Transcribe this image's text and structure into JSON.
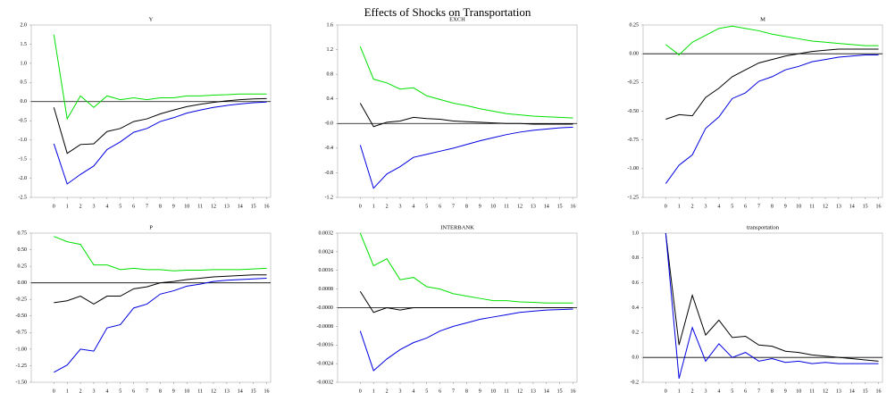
{
  "title": "Effects of Shocks on Transportation",
  "chart_data": [
    {
      "type": "line",
      "title": "Y",
      "x": [
        0,
        1,
        2,
        3,
        4,
        5,
        6,
        7,
        8,
        9,
        10,
        11,
        12,
        13,
        14,
        15,
        16
      ],
      "xlim": [
        -1.7,
        16.3
      ],
      "xticks": [
        0,
        1,
        2,
        3,
        4,
        5,
        6,
        7,
        8,
        9,
        10,
        11,
        12,
        13,
        14,
        15,
        16
      ],
      "ylim": [
        -2.5,
        2.0
      ],
      "yticks": [
        {
          "value": 2.0,
          "label": "2.0"
        },
        1.5,
        {
          "value": 1.0,
          "label": "1.0"
        },
        0.5,
        {
          "value": 0.0,
          "label": "0.0"
        },
        -0.5,
        {
          "value": -1.0,
          "label": "-1.0"
        },
        -1.5,
        {
          "value": -2.0,
          "label": "-2.0"
        },
        -2.5
      ],
      "series": [
        {
          "color": "#00e000",
          "values": [
            1.75,
            -0.45,
            0.15,
            -0.15,
            0.15,
            0.05,
            0.1,
            0.05,
            0.1,
            0.1,
            0.15,
            0.15,
            0.17,
            0.18,
            0.2,
            0.2,
            0.2
          ]
        },
        {
          "color": "#000000",
          "values": [
            -0.15,
            -1.35,
            -1.12,
            -1.1,
            -0.78,
            -0.7,
            -0.52,
            -0.45,
            -0.32,
            -0.22,
            -0.13,
            -0.07,
            -0.02,
            0.02,
            0.05,
            0.07,
            0.08
          ]
        },
        {
          "color": "#0000e0",
          "values": [
            -1.1,
            -2.15,
            -1.9,
            -1.68,
            -1.25,
            -1.05,
            -0.8,
            -0.7,
            -0.52,
            -0.42,
            -0.3,
            -0.22,
            -0.15,
            -0.1,
            -0.06,
            -0.03,
            -0.01
          ]
        }
      ]
    },
    {
      "type": "line",
      "title": "EXCH",
      "x": [
        0,
        1,
        2,
        3,
        4,
        5,
        6,
        7,
        8,
        9,
        10,
        11,
        12,
        13,
        14,
        15,
        16
      ],
      "xlim": [
        -1.7,
        16.3
      ],
      "xticks": [
        0,
        1,
        2,
        3,
        4,
        5,
        6,
        7,
        8,
        9,
        10,
        11,
        12,
        13,
        14,
        15,
        16
      ],
      "ylim": [
        -1.2,
        1.6
      ],
      "yticks": [
        1.6,
        1.2,
        0.8,
        0.4,
        {
          "value": 0,
          "label": "-0.0"
        },
        -0.4,
        -0.8,
        -1.2
      ],
      "series": [
        {
          "color": "#00e000",
          "values": [
            1.25,
            0.72,
            0.66,
            0.56,
            0.58,
            0.45,
            0.39,
            0.33,
            0.29,
            0.24,
            0.2,
            0.16,
            0.14,
            0.12,
            0.11,
            0.1,
            0.09
          ]
        },
        {
          "color": "#000000",
          "values": [
            0.33,
            -0.05,
            0.02,
            0.04,
            0.1,
            0.08,
            0.07,
            0.04,
            0.03,
            0.02,
            0.01,
            0.0,
            0.0,
            -0.01,
            -0.01,
            -0.01,
            -0.01
          ]
        },
        {
          "color": "#0000e0",
          "values": [
            -0.35,
            -1.05,
            -0.82,
            -0.7,
            -0.55,
            -0.5,
            -0.45,
            -0.4,
            -0.34,
            -0.28,
            -0.23,
            -0.18,
            -0.14,
            -0.11,
            -0.09,
            -0.07,
            -0.06
          ]
        }
      ]
    },
    {
      "type": "line",
      "title": "M",
      "x": [
        0,
        1,
        2,
        3,
        4,
        5,
        6,
        7,
        8,
        9,
        10,
        11,
        12,
        13,
        14,
        15,
        16
      ],
      "xlim": [
        -1.7,
        16.3
      ],
      "xticks": [
        0,
        1,
        2,
        3,
        4,
        5,
        6,
        7,
        8,
        9,
        10,
        11,
        12,
        13,
        14,
        15,
        16
      ],
      "ylim": [
        -1.25,
        0.25
      ],
      "yticks": [
        0.25,
        {
          "value": 0,
          "label": "0.00"
        },
        -0.25,
        {
          "value": -0.5,
          "label": "-0.50"
        },
        -0.75,
        {
          "value": -1.0,
          "label": "-1.00"
        },
        -1.25
      ],
      "series": [
        {
          "color": "#00e000",
          "values": [
            0.08,
            -0.01,
            0.1,
            0.16,
            0.22,
            0.24,
            0.22,
            0.2,
            0.17,
            0.15,
            0.13,
            0.11,
            0.1,
            0.09,
            0.08,
            0.07,
            0.07
          ]
        },
        {
          "color": "#000000",
          "values": [
            -0.57,
            -0.53,
            -0.54,
            -0.38,
            -0.3,
            -0.2,
            -0.14,
            -0.08,
            -0.05,
            -0.02,
            0.0,
            0.02,
            0.03,
            0.04,
            0.04,
            0.04,
            0.04
          ]
        },
        {
          "color": "#0000e0",
          "values": [
            -1.13,
            -0.97,
            -0.88,
            -0.65,
            -0.55,
            -0.39,
            -0.34,
            -0.24,
            -0.2,
            -0.14,
            -0.11,
            -0.07,
            -0.05,
            -0.03,
            -0.02,
            -0.01,
            -0.01
          ]
        }
      ]
    },
    {
      "type": "line",
      "title": "P",
      "x": [
        0,
        1,
        2,
        3,
        4,
        5,
        6,
        7,
        8,
        9,
        10,
        11,
        12,
        13,
        14,
        15,
        16
      ],
      "xlim": [
        -1.7,
        16.3
      ],
      "xticks": [
        0,
        1,
        2,
        3,
        4,
        5,
        6,
        7,
        8,
        9,
        10,
        11,
        12,
        13,
        14,
        15,
        16
      ],
      "ylim": [
        -1.5,
        0.75
      ],
      "yticks": [
        0.75,
        {
          "value": 0.5,
          "label": "0.50"
        },
        0.25,
        {
          "value": 0,
          "label": "0.00"
        },
        -0.25,
        {
          "value": -0.5,
          "label": "-0.50"
        },
        -0.75,
        {
          "value": -1.0,
          "label": "-1.00"
        },
        -1.25,
        {
          "value": -1.5,
          "label": "-1.50"
        }
      ],
      "series": [
        {
          "color": "#00e000",
          "values": [
            0.7,
            0.62,
            0.58,
            0.27,
            0.27,
            0.2,
            0.22,
            0.2,
            0.2,
            0.18,
            0.19,
            0.19,
            0.2,
            0.2,
            0.2,
            0.21,
            0.22
          ]
        },
        {
          "color": "#000000",
          "values": [
            -0.3,
            -0.27,
            -0.2,
            -0.32,
            -0.2,
            -0.2,
            -0.09,
            -0.06,
            0.0,
            0.02,
            0.05,
            0.07,
            0.09,
            0.1,
            0.11,
            0.12,
            0.12
          ]
        },
        {
          "color": "#0000e0",
          "values": [
            -1.35,
            -1.24,
            -1.0,
            -1.03,
            -0.68,
            -0.63,
            -0.38,
            -0.32,
            -0.17,
            -0.12,
            -0.05,
            -0.02,
            0.02,
            0.04,
            0.05,
            0.06,
            0.07
          ]
        }
      ]
    },
    {
      "type": "line",
      "title": "INTERBANK",
      "x": [
        0,
        1,
        2,
        3,
        4,
        5,
        6,
        7,
        8,
        9,
        10,
        11,
        12,
        13,
        14,
        15,
        16
      ],
      "xlim": [
        -1.7,
        16.3
      ],
      "xticks": [
        0,
        1,
        2,
        3,
        4,
        5,
        6,
        7,
        8,
        9,
        10,
        11,
        12,
        13,
        14,
        15,
        16
      ],
      "ylim": [
        -0.0032,
        0.0032
      ],
      "yticks": [
        0.0032,
        0.0024,
        0.0016,
        0.0008,
        {
          "value": 0,
          "label": "-0.0000"
        },
        -0.0008,
        -0.0016,
        -0.0024,
        -0.0032
      ],
      "series": [
        {
          "color": "#00e000",
          "values": [
            0.0032,
            0.0018,
            0.0021,
            0.0012,
            0.0013,
            0.0009,
            0.0008,
            0.0006,
            0.0005,
            0.0004,
            0.0003,
            0.0003,
            0.00025,
            0.00023,
            0.0002,
            0.0002,
            0.0002
          ]
        },
        {
          "color": "#000000",
          "values": [
            0.0007,
            -0.0002,
            0.0,
            -0.0001,
            0.0,
            0.0,
            0.0,
            0.0,
            0.0,
            0.0,
            0.0,
            0.0,
            0.0,
            0.0,
            0.0,
            0.0,
            0.0
          ]
        },
        {
          "color": "#0000e0",
          "values": [
            -0.001,
            -0.0027,
            -0.0022,
            -0.0018,
            -0.0015,
            -0.0013,
            -0.001,
            -0.0008,
            -0.00065,
            -0.0005,
            -0.0004,
            -0.0003,
            -0.0002,
            -0.00015,
            -0.0001,
            -8e-05,
            -6e-05
          ]
        }
      ]
    },
    {
      "type": "line",
      "title": "transportation",
      "x": [
        0,
        1,
        2,
        3,
        4,
        5,
        6,
        7,
        8,
        9,
        10,
        11,
        12,
        13,
        14,
        15,
        16
      ],
      "xlim": [
        -1.7,
        16.3
      ],
      "xticks": [
        0,
        1,
        2,
        3,
        4,
        5,
        6,
        7,
        8,
        9,
        10,
        11,
        12,
        13,
        14,
        15,
        16
      ],
      "ylim": [
        -0.2,
        1.0
      ],
      "yticks": [
        {
          "value": 1.0,
          "label": "1.0"
        },
        0.8,
        0.6,
        0.4,
        0.2,
        {
          "value": 0,
          "label": "0.0"
        },
        -0.2
      ],
      "series": [
        {
          "color": "#000000",
          "values": [
            1.0,
            0.1,
            0.5,
            0.18,
            0.3,
            0.16,
            0.17,
            0.1,
            0.09,
            0.05,
            0.04,
            0.02,
            0.01,
            0.0,
            -0.01,
            -0.02,
            -0.03
          ]
        },
        {
          "color": "#0000e0",
          "values": [
            1.0,
            -0.17,
            0.24,
            -0.03,
            0.11,
            0.0,
            0.04,
            -0.03,
            -0.01,
            -0.04,
            -0.03,
            -0.05,
            -0.04,
            -0.05,
            -0.05,
            -0.05,
            -0.05
          ]
        }
      ]
    }
  ]
}
